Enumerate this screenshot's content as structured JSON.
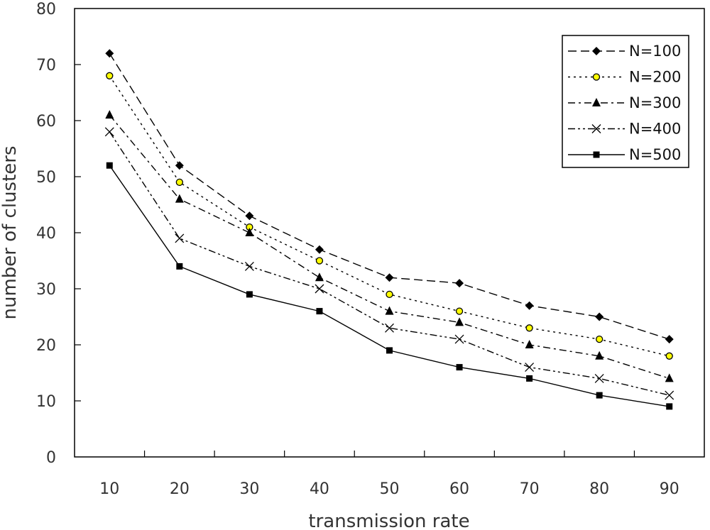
{
  "chart_data": {
    "type": "line",
    "title": "",
    "xlabel": "transmission rate",
    "ylabel": "number of clusters",
    "x": [
      10,
      20,
      30,
      40,
      50,
      60,
      70,
      80,
      90
    ],
    "ylim": [
      0,
      80
    ],
    "yticks": [
      0,
      10,
      20,
      30,
      40,
      50,
      60,
      70,
      80
    ],
    "grid": false,
    "legend_position": "top-right",
    "series": [
      {
        "name": "N=100",
        "values": [
          72,
          52,
          43,
          37,
          32,
          31,
          27,
          25,
          21
        ],
        "marker": "diamond",
        "line": "dash"
      },
      {
        "name": "N=200",
        "values": [
          68,
          49,
          41,
          35,
          29,
          26,
          23,
          21,
          18
        ],
        "marker": "circle",
        "line": "dot"
      },
      {
        "name": "N=300",
        "values": [
          61,
          46,
          40,
          32,
          26,
          24,
          20,
          18,
          14
        ],
        "marker": "triangle",
        "line": "dashdot"
      },
      {
        "name": "N=400",
        "values": [
          58,
          39,
          34,
          30,
          23,
          21,
          16,
          14,
          11
        ],
        "marker": "x",
        "line": "dashdotdot"
      },
      {
        "name": "N=500",
        "values": [
          52,
          34,
          29,
          26,
          19,
          16,
          14,
          11,
          9
        ],
        "marker": "square",
        "line": "solid"
      }
    ]
  },
  "colors": {
    "line": "#000000",
    "circle_fill": "#ffff00",
    "axis": "#000000"
  }
}
